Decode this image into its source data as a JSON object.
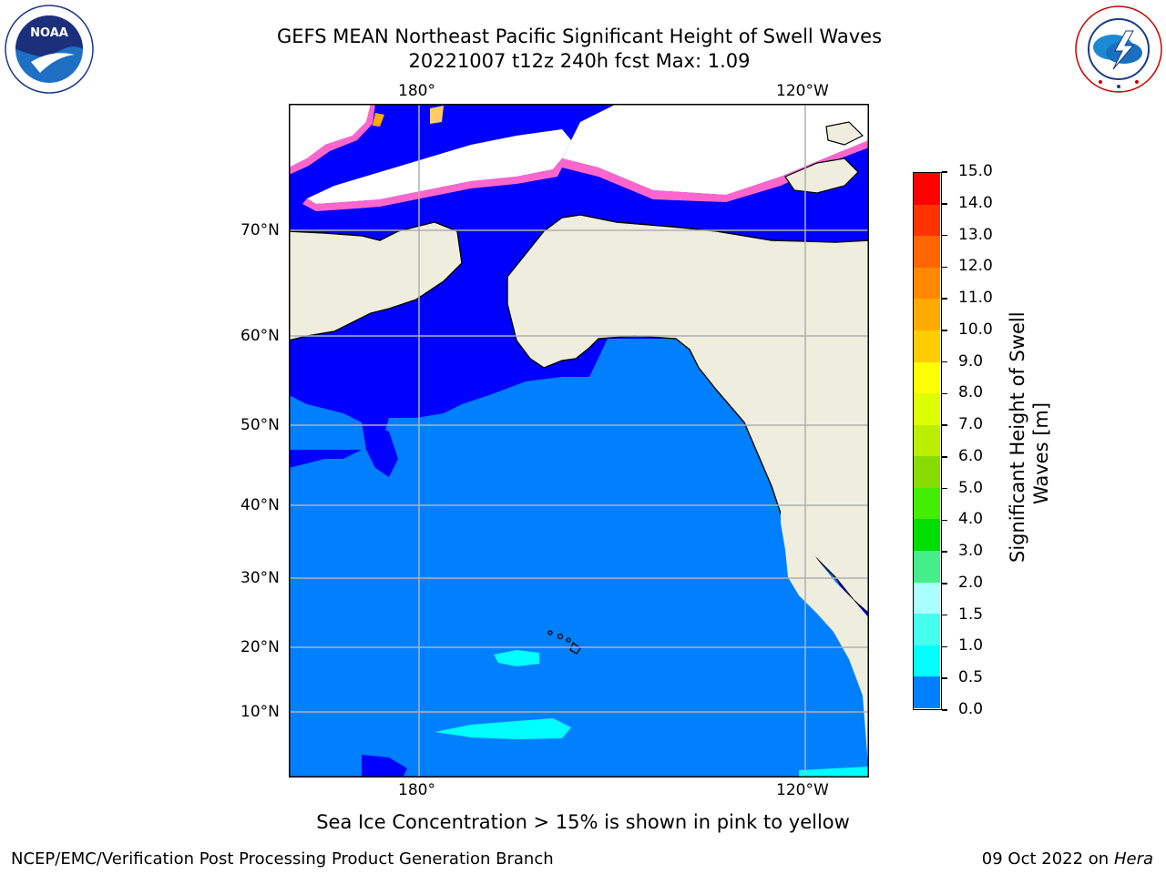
{
  "title": {
    "line1": "GEFS MEAN Northeast Pacific Significant Height of Swell Waves",
    "line2": "20221007 t12z 240h fcst   Max: 1.09"
  },
  "logos": {
    "left": {
      "name": "NOAA",
      "ring_text": "NATIONAL OCEANIC AND ATMOSPHERIC ADMINISTRATION",
      "bottom_text": "U.S. DEPARTMENT OF COMMERCE"
    },
    "right": {
      "name": "NATIONAL WEATHER SERVICE"
    }
  },
  "map": {
    "lon_labels": [
      "180°",
      "120°W"
    ],
    "lat_labels": [
      "70°N",
      "60°N",
      "50°N",
      "40°N",
      "30°N",
      "20°N",
      "10°N"
    ],
    "colors": {
      "land": "#efedde",
      "ice_edge": "#ff66cc",
      "ice_inner": "#ffffff"
    }
  },
  "colorbar": {
    "title_line1": "Significant Height of Swell",
    "title_line2": "Waves [m]",
    "labels": [
      "15.0",
      "14.0",
      "13.0",
      "12.0",
      "11.0",
      "10.0",
      "9.0",
      "8.0",
      "7.0",
      "6.0",
      "5.0",
      "4.0",
      "3.0",
      "2.0",
      "1.5",
      "1.0",
      "0.5",
      "0.0"
    ],
    "colors": [
      "#ff0000",
      "#ff3300",
      "#ff6600",
      "#ff8800",
      "#ffaa00",
      "#ffcc00",
      "#ffff00",
      "#ddff00",
      "#bbee00",
      "#88dd00",
      "#44ee00",
      "#00dd00",
      "#44ee88",
      "#aaffff",
      "#44ffee",
      "#00ffff",
      "#0080ff",
      "#0000ff"
    ]
  },
  "note": "Sea Ice Concentration > 15% is shown in pink to yellow",
  "footer": {
    "left": "NCEP/EMC/Verification Post Processing Product Generation Branch",
    "right_date": "09 Oct 2022 on ",
    "right_host": "Hera"
  }
}
